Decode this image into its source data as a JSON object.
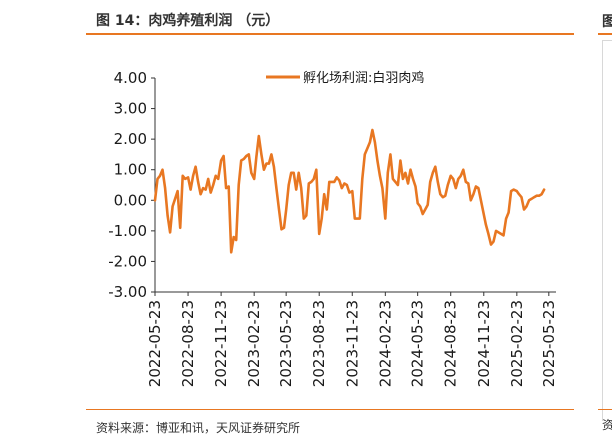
{
  "figure": {
    "title": "图 14：肉鸡养殖利润 （元）",
    "source": "资料来源：博亚和讯，天风证券研究所",
    "right_title_char": "图",
    "right_source_char": "资"
  },
  "colors": {
    "accent": "#e87722",
    "series": "#e87722"
  },
  "chart_data": {
    "type": "line",
    "legend_position": "top-center",
    "grid": false,
    "ylim": [
      -3.0,
      4.0
    ],
    "yticks": [
      "4.00",
      "3.00",
      "2.00",
      "1.00",
      "0.00",
      "-1.00",
      "-2.00",
      "-3.00"
    ],
    "ytick_values": [
      4,
      3,
      2,
      1,
      0,
      -1,
      -2,
      -3
    ],
    "xlim": [
      "2022-05-23",
      "2025-06-12"
    ],
    "xticks": [
      "2022-05-23",
      "2022-08-23",
      "2022-11-23",
      "2023-02-23",
      "2023-05-23",
      "2023-08-23",
      "2023-11-23",
      "2024-02-23",
      "2024-05-23",
      "2024-08-23",
      "2024-11-23",
      "2025-02-23",
      "2025-05-23"
    ],
    "series": [
      {
        "name": "孵化场利润:白羽肉鸡",
        "points": [
          [
            "2022-05-23",
            0.0
          ],
          [
            "2022-05-30",
            0.7
          ],
          [
            "2022-06-06",
            0.8
          ],
          [
            "2022-06-13",
            1.0
          ],
          [
            "2022-06-20",
            0.4
          ],
          [
            "2022-06-27",
            -0.5
          ],
          [
            "2022-07-04",
            -1.05
          ],
          [
            "2022-07-11",
            -0.2
          ],
          [
            "2022-07-18",
            0.05
          ],
          [
            "2022-07-25",
            0.3
          ],
          [
            "2022-08-01",
            -0.9
          ],
          [
            "2022-08-08",
            0.8
          ],
          [
            "2022-08-15",
            0.7
          ],
          [
            "2022-08-23",
            0.75
          ],
          [
            "2022-08-30",
            0.35
          ],
          [
            "2022-09-06",
            0.8
          ],
          [
            "2022-09-13",
            1.1
          ],
          [
            "2022-09-20",
            0.6
          ],
          [
            "2022-09-27",
            0.2
          ],
          [
            "2022-10-04",
            0.4
          ],
          [
            "2022-10-11",
            0.35
          ],
          [
            "2022-10-18",
            0.7
          ],
          [
            "2022-10-25",
            0.25
          ],
          [
            "2022-11-01",
            0.5
          ],
          [
            "2022-11-08",
            0.8
          ],
          [
            "2022-11-15",
            0.7
          ],
          [
            "2022-11-23",
            1.3
          ],
          [
            "2022-11-30",
            1.45
          ],
          [
            "2022-12-07",
            0.4
          ],
          [
            "2022-12-14",
            0.45
          ],
          [
            "2022-12-21",
            -1.7
          ],
          [
            "2022-12-28",
            -1.2
          ],
          [
            "2023-01-04",
            -1.3
          ],
          [
            "2023-01-11",
            0.5
          ],
          [
            "2023-01-18",
            1.3
          ],
          [
            "2023-01-25",
            1.35
          ],
          [
            "2023-02-01",
            1.45
          ],
          [
            "2023-02-08",
            1.5
          ],
          [
            "2023-02-15",
            0.9
          ],
          [
            "2023-02-23",
            0.7
          ],
          [
            "2023-03-01",
            1.4
          ],
          [
            "2023-03-08",
            2.1
          ],
          [
            "2023-03-15",
            1.5
          ],
          [
            "2023-03-22",
            1.0
          ],
          [
            "2023-03-29",
            1.2
          ],
          [
            "2023-04-05",
            1.2
          ],
          [
            "2023-04-12",
            1.5
          ],
          [
            "2023-04-19",
            1.1
          ],
          [
            "2023-04-26",
            0.4
          ],
          [
            "2023-05-03",
            -0.3
          ],
          [
            "2023-05-10",
            -0.95
          ],
          [
            "2023-05-17",
            -0.9
          ],
          [
            "2023-05-23",
            -0.3
          ],
          [
            "2023-05-30",
            0.5
          ],
          [
            "2023-06-06",
            0.9
          ],
          [
            "2023-06-13",
            0.9
          ],
          [
            "2023-06-20",
            0.35
          ],
          [
            "2023-06-27",
            0.9
          ],
          [
            "2023-07-04",
            0.4
          ],
          [
            "2023-07-11",
            -0.6
          ],
          [
            "2023-07-18",
            -0.5
          ],
          [
            "2023-07-25",
            0.55
          ],
          [
            "2023-08-01",
            0.6
          ],
          [
            "2023-08-08",
            0.7
          ],
          [
            "2023-08-15",
            1.0
          ],
          [
            "2023-08-23",
            -1.1
          ],
          [
            "2023-08-30",
            -0.6
          ],
          [
            "2023-09-06",
            0.2
          ],
          [
            "2023-09-13",
            -0.3
          ],
          [
            "2023-09-20",
            0.6
          ],
          [
            "2023-09-27",
            0.6
          ],
          [
            "2023-10-04",
            0.6
          ],
          [
            "2023-10-11",
            0.75
          ],
          [
            "2023-10-18",
            0.65
          ],
          [
            "2023-10-25",
            0.4
          ],
          [
            "2023-11-01",
            0.55
          ],
          [
            "2023-11-08",
            0.5
          ],
          [
            "2023-11-15",
            0.25
          ],
          [
            "2023-11-23",
            0.3
          ],
          [
            "2023-11-30",
            -0.6
          ],
          [
            "2023-12-07",
            -0.6
          ],
          [
            "2023-12-14",
            -0.6
          ],
          [
            "2023-12-21",
            0.7
          ],
          [
            "2023-12-28",
            1.5
          ],
          [
            "2024-01-04",
            1.7
          ],
          [
            "2024-01-11",
            1.9
          ],
          [
            "2024-01-18",
            2.3
          ],
          [
            "2024-01-25",
            1.9
          ],
          [
            "2024-02-01",
            1.3
          ],
          [
            "2024-02-08",
            0.8
          ],
          [
            "2024-02-15",
            0.4
          ],
          [
            "2024-02-23",
            -0.6
          ],
          [
            "2024-03-01",
            0.9
          ],
          [
            "2024-03-08",
            1.5
          ],
          [
            "2024-03-15",
            0.7
          ],
          [
            "2024-03-22",
            0.6
          ],
          [
            "2024-03-29",
            0.5
          ],
          [
            "2024-04-05",
            1.3
          ],
          [
            "2024-04-12",
            0.7
          ],
          [
            "2024-04-19",
            0.9
          ],
          [
            "2024-04-26",
            0.55
          ],
          [
            "2024-05-03",
            1.0
          ],
          [
            "2024-05-10",
            0.7
          ],
          [
            "2024-05-17",
            0.45
          ],
          [
            "2024-05-23",
            -0.1
          ],
          [
            "2024-05-30",
            -0.2
          ],
          [
            "2024-06-06",
            -0.45
          ],
          [
            "2024-06-13",
            -0.3
          ],
          [
            "2024-06-20",
            -0.15
          ],
          [
            "2024-06-27",
            0.6
          ],
          [
            "2024-07-04",
            0.9
          ],
          [
            "2024-07-11",
            1.1
          ],
          [
            "2024-07-18",
            0.6
          ],
          [
            "2024-07-25",
            0.2
          ],
          [
            "2024-08-01",
            0.1
          ],
          [
            "2024-08-08",
            0.15
          ],
          [
            "2024-08-15",
            0.5
          ],
          [
            "2024-08-23",
            0.8
          ],
          [
            "2024-08-30",
            0.7
          ],
          [
            "2024-09-06",
            0.4
          ],
          [
            "2024-09-13",
            0.7
          ],
          [
            "2024-09-20",
            0.8
          ],
          [
            "2024-09-27",
            1.0
          ],
          [
            "2024-10-04",
            0.6
          ],
          [
            "2024-10-11",
            0.55
          ],
          [
            "2024-10-18",
            0.0
          ],
          [
            "2024-10-25",
            0.2
          ],
          [
            "2024-11-01",
            0.45
          ],
          [
            "2024-11-08",
            0.4
          ],
          [
            "2024-11-15",
            0.0
          ],
          [
            "2024-11-22",
            -0.4
          ],
          [
            "2024-11-29",
            -0.8
          ],
          [
            "2024-12-06",
            -1.1
          ],
          [
            "2024-12-13",
            -1.45
          ],
          [
            "2024-12-20",
            -1.35
          ],
          [
            "2024-12-27",
            -1.0
          ],
          [
            "2025-01-03",
            -1.05
          ],
          [
            "2025-01-10",
            -1.1
          ],
          [
            "2025-01-17",
            -1.15
          ],
          [
            "2025-01-24",
            -0.6
          ],
          [
            "2025-01-31",
            -0.4
          ],
          [
            "2025-02-07",
            0.3
          ],
          [
            "2025-02-14",
            0.35
          ],
          [
            "2025-02-23",
            0.3
          ],
          [
            "2025-03-01",
            0.2
          ],
          [
            "2025-03-08",
            0.1
          ],
          [
            "2025-03-15",
            -0.3
          ],
          [
            "2025-03-22",
            -0.2
          ],
          [
            "2025-03-29",
            0.0
          ],
          [
            "2025-04-05",
            0.05
          ],
          [
            "2025-04-12",
            0.1
          ],
          [
            "2025-04-19",
            0.15
          ],
          [
            "2025-04-26",
            0.15
          ],
          [
            "2025-05-03",
            0.2
          ],
          [
            "2025-05-10",
            0.35
          ]
        ]
      }
    ]
  }
}
